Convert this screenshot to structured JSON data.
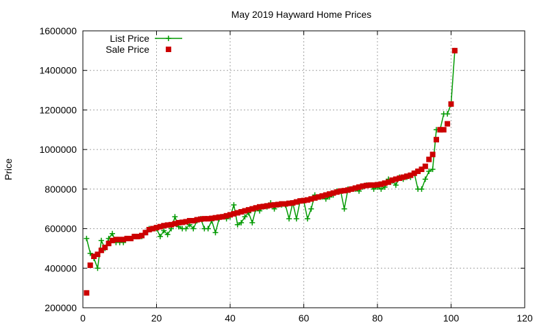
{
  "chart_data": {
    "type": "scatter",
    "title": "May 2019 Hayward Home Prices",
    "xlabel": "",
    "ylabel": "Price",
    "xlim": [
      0,
      120
    ],
    "ylim": [
      200000,
      1600000
    ],
    "xticks": [
      0,
      20,
      40,
      60,
      80,
      100,
      120
    ],
    "yticks": [
      200000,
      400000,
      600000,
      800000,
      1000000,
      1200000,
      1400000,
      1600000
    ],
    "grid": true,
    "legend_position": "top-left",
    "series": [
      {
        "name": "List Price",
        "style": "line+cross",
        "color": "#009900",
        "x": [
          1,
          2,
          3,
          4,
          5,
          6,
          7,
          8,
          9,
          10,
          11,
          12,
          13,
          14,
          15,
          16,
          17,
          18,
          19,
          20,
          21,
          22,
          23,
          24,
          25,
          26,
          27,
          28,
          29,
          30,
          31,
          32,
          33,
          34,
          35,
          36,
          37,
          38,
          39,
          40,
          41,
          42,
          43,
          44,
          45,
          46,
          47,
          48,
          49,
          50,
          51,
          52,
          53,
          54,
          55,
          56,
          57,
          58,
          59,
          60,
          61,
          62,
          63,
          64,
          65,
          66,
          67,
          68,
          69,
          70,
          71,
          72,
          73,
          74,
          75,
          76,
          77,
          78,
          79,
          80,
          81,
          82,
          83,
          84,
          85,
          86,
          87,
          88,
          89,
          90,
          91,
          92,
          93,
          94,
          95,
          96,
          97,
          98,
          99,
          100,
          101
        ],
        "y": [
          550000,
          475000,
          450000,
          400000,
          540000,
          500000,
          550000,
          575000,
          530000,
          530000,
          530000,
          550000,
          550000,
          560000,
          560000,
          560000,
          580000,
          600000,
          600000,
          600000,
          560000,
          590000,
          570000,
          600000,
          660000,
          610000,
          600000,
          600000,
          620000,
          600000,
          640000,
          650000,
          600000,
          600000,
          640000,
          580000,
          650000,
          660000,
          650000,
          660000,
          720000,
          620000,
          630000,
          660000,
          680000,
          630000,
          700000,
          690000,
          710000,
          710000,
          730000,
          700000,
          720000,
          720000,
          720000,
          650000,
          730000,
          650000,
          740000,
          740000,
          650000,
          700000,
          770000,
          760000,
          760000,
          750000,
          760000,
          770000,
          790000,
          790000,
          700000,
          800000,
          800000,
          800000,
          790000,
          810000,
          820000,
          820000,
          800000,
          810000,
          800000,
          810000,
          850000,
          840000,
          820000,
          860000,
          850000,
          860000,
          860000,
          880000,
          800000,
          800000,
          850000,
          890000,
          900000,
          1100000,
          1100000,
          1180000,
          1180000,
          1230000,
          1500000
        ]
      },
      {
        "name": "Sale Price",
        "style": "square",
        "color": "#cc0000",
        "x": [
          1,
          2,
          3,
          4,
          5,
          6,
          7,
          8,
          9,
          10,
          11,
          12,
          13,
          14,
          15,
          16,
          17,
          18,
          19,
          20,
          21,
          22,
          23,
          24,
          25,
          26,
          27,
          28,
          29,
          30,
          31,
          32,
          33,
          34,
          35,
          36,
          37,
          38,
          39,
          40,
          41,
          42,
          43,
          44,
          45,
          46,
          47,
          48,
          49,
          50,
          51,
          52,
          53,
          54,
          55,
          56,
          57,
          58,
          59,
          60,
          61,
          62,
          63,
          64,
          65,
          66,
          67,
          68,
          69,
          70,
          71,
          72,
          73,
          74,
          75,
          76,
          77,
          78,
          79,
          80,
          81,
          82,
          83,
          84,
          85,
          86,
          87,
          88,
          89,
          90,
          91,
          92,
          93,
          94,
          95,
          96,
          97,
          98,
          99,
          100,
          101
        ],
        "y": [
          275000,
          415000,
          460000,
          470000,
          490000,
          505000,
          525000,
          540000,
          545000,
          545000,
          545000,
          550000,
          550000,
          560000,
          560000,
          565000,
          580000,
          595000,
          600000,
          605000,
          610000,
          615000,
          618000,
          620000,
          625000,
          630000,
          632000,
          635000,
          640000,
          640000,
          645000,
          648000,
          650000,
          650000,
          652000,
          655000,
          658000,
          660000,
          665000,
          670000,
          675000,
          680000,
          685000,
          690000,
          695000,
          700000,
          705000,
          710000,
          712000,
          715000,
          718000,
          720000,
          722000,
          725000,
          725000,
          728000,
          730000,
          735000,
          740000,
          742000,
          745000,
          750000,
          755000,
          760000,
          765000,
          770000,
          775000,
          780000,
          785000,
          790000,
          792000,
          795000,
          800000,
          805000,
          810000,
          815000,
          818000,
          820000,
          820000,
          822000,
          825000,
          830000,
          835000,
          845000,
          850000,
          855000,
          860000,
          865000,
          870000,
          880000,
          890000,
          900000,
          915000,
          950000,
          975000,
          1050000,
          1100000,
          1100000,
          1130000,
          1230000,
          1500000
        ]
      }
    ]
  }
}
